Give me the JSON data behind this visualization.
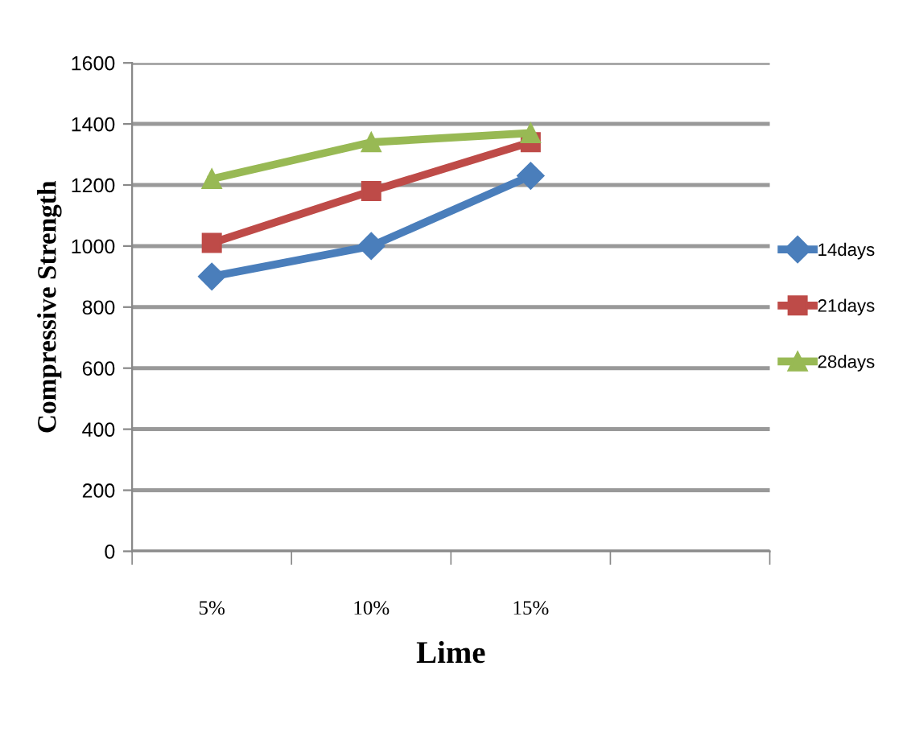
{
  "chart_data": {
    "type": "line",
    "xlabel": "Lime",
    "ylabel": "Compressive Strength",
    "categories": [
      "5%",
      "10%",
      "15%",
      null
    ],
    "series": [
      {
        "name": "14days",
        "color": "#4a7ebb",
        "marker": "diamond",
        "values": [
          900,
          1000,
          1230,
          null
        ]
      },
      {
        "name": "21days",
        "color": "#be4b48",
        "marker": "square",
        "values": [
          1010,
          1180,
          1340,
          null
        ]
      },
      {
        "name": "28days",
        "color": "#98b954",
        "marker": "triangle",
        "values": [
          1220,
          1340,
          1370,
          null
        ]
      }
    ],
    "ylim": [
      0,
      1600
    ],
    "yticks": [
      0,
      200,
      400,
      600,
      800,
      1000,
      1200,
      1400,
      1600
    ],
    "grid": "y",
    "legend": "right",
    "line_style": "solid"
  }
}
